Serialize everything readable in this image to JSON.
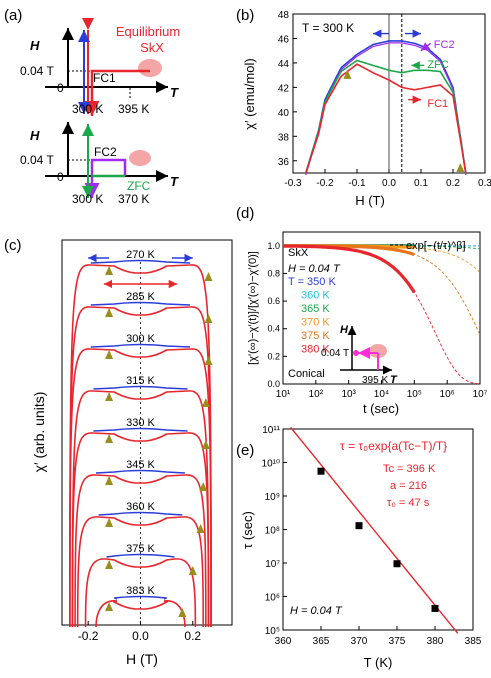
{
  "panel_labels": {
    "a": "(a)",
    "b": "(b)",
    "c": "(c)",
    "d": "(d)",
    "e": "(e)"
  },
  "colors": {
    "red": "#e8262d",
    "blue": "#2a3ddb",
    "green": "#1aa84b",
    "purple": "#a12bf0",
    "pink": "#f4a6a6",
    "magenta": "#ff2dd6",
    "olive": "#9a8d1a",
    "cyan": "#1ec8e8",
    "orange": "#f39a1c",
    "dkorange": "#e8761a",
    "black": "#000000"
  },
  "panel_a": {
    "h_label": "H",
    "t_label": "T",
    "field": "0.04 T",
    "zero": "0",
    "top": {
      "path": "FC1",
      "equilibrium": "Equilibrium",
      "skx": "SkX",
      "t1": "300 K",
      "t2": "395 K"
    },
    "bottom": {
      "path1": "FC2",
      "path2": "ZFC",
      "t1": "300 K",
      "t2": "370 K"
    }
  },
  "chart_data": [
    {
      "type": "line",
      "panel": "b",
      "title": "T = 300 K",
      "xlabel": "H (T)",
      "ylabel": "χ′ (emu/mol)",
      "xlim": [
        -0.3,
        0.3
      ],
      "ylim": [
        35,
        48
      ],
      "xticks": [
        "-0.3",
        "-0.2",
        "-0.1",
        "0.0",
        "0.1",
        "0.2",
        "0.3"
      ],
      "yticks": [
        "36",
        "38",
        "40",
        "42",
        "44",
        "46",
        "48"
      ],
      "vlines": [
        0.0,
        0.04
      ],
      "series": [
        {
          "name": "FC2",
          "x": [
            -0.26,
            -0.22,
            -0.2,
            -0.15,
            -0.1,
            -0.05,
            0.0,
            0.04,
            0.08,
            0.12,
            0.16,
            0.2,
            0.22,
            0.24
          ],
          "y": [
            35,
            38.5,
            41,
            43.6,
            44.7,
            45.5,
            45.8,
            45.8,
            45.6,
            45.2,
            44.3,
            42,
            38.5,
            35
          ]
        },
        {
          "name": "ZFC",
          "x": [
            -0.26,
            -0.22,
            -0.2,
            -0.15,
            -0.1,
            -0.05,
            0.0,
            0.04,
            0.08,
            0.12,
            0.16,
            0.2,
            0.22,
            0.24
          ],
          "y": [
            35,
            38.4,
            40.8,
            43.3,
            44.2,
            43.8,
            43.4,
            43.2,
            43.4,
            43.4,
            43.3,
            41.6,
            38.4,
            35
          ]
        },
        {
          "name": "FC1",
          "x": [
            -0.26,
            -0.22,
            -0.2,
            -0.15,
            -0.1,
            -0.05,
            0.0,
            0.04,
            0.08,
            0.12,
            0.16,
            0.2,
            0.22,
            0.24
          ],
          "y": [
            35,
            38.2,
            40.6,
            42.9,
            43.9,
            43.2,
            42.6,
            42.0,
            41.8,
            42.0,
            42.2,
            41.3,
            38.2,
            35
          ]
        }
      ]
    },
    {
      "type": "line",
      "panel": "c",
      "xlabel": "H (T)",
      "ylabel": "χ′ (arb. units)",
      "xlim": [
        -0.3,
        0.35
      ],
      "xticks": [
        "-0.2",
        "0.0",
        "0.2"
      ],
      "temperatures": [
        "270 K",
        "285 K",
        "300 K",
        "315 K",
        "330 K",
        "345 K",
        "360 K",
        "375 K",
        "383 K"
      ],
      "half_width": [
        0.22,
        0.22,
        0.22,
        0.21,
        0.21,
        0.2,
        0.19,
        0.16,
        0.12
      ]
    },
    {
      "type": "line",
      "panel": "d",
      "xlabel": "t (sec)",
      "ylabel": "[χ′(∞)−χ′(t)]/[χ′(∞)−χ′(0)]",
      "xscale": "log",
      "xlim": [
        10,
        10000000
      ],
      "ylim": [
        0,
        1.1
      ],
      "xticks": [
        "10¹",
        "10²",
        "10³",
        "10⁴",
        "10⁵",
        "10⁶",
        "10⁷"
      ],
      "yticks": [
        "0.0",
        "0.2",
        "0.4",
        "0.6",
        "0.8",
        "1.0"
      ],
      "top_label": "SkX",
      "bottom_label": "Conical",
      "legend_fit": "exp[−(t/τ)^β]",
      "field_label": "H = 0.04 T",
      "inset": {
        "h": "H",
        "t": "T",
        "field": "0.04 T",
        "temp": "395 K"
      },
      "series": [
        {
          "name": "T = 350 K",
          "tau": 1000000000000000.0,
          "beta": 0.6
        },
        {
          "name": "360 K",
          "tau": 1000000000000.0,
          "beta": 0.6
        },
        {
          "name": "365 K",
          "tau": 5500000000.0,
          "beta": 0.6
        },
        {
          "name": "370 K",
          "tau": 130000000.0,
          "beta": 0.6
        },
        {
          "name": "375 K",
          "tau": 9500000.0,
          "beta": 0.6
        },
        {
          "name": "380 K",
          "tau": 440000.0,
          "beta": 0.6
        }
      ]
    },
    {
      "type": "scatter",
      "panel": "e",
      "xlabel": "T (K)",
      "ylabel": "τ (sec)",
      "xlim": [
        360,
        385
      ],
      "ylim_log10": [
        5,
        11
      ],
      "xticks": [
        "360",
        "365",
        "370",
        "375",
        "380",
        "385"
      ],
      "yticks": [
        "10⁵",
        "10⁶",
        "10⁷",
        "10⁸",
        "10⁹",
        "10¹⁰",
        "10¹¹"
      ],
      "points": [
        {
          "x": 365,
          "y": 5500000000
        },
        {
          "x": 370,
          "y": 130000000
        },
        {
          "x": 375,
          "y": 9500000
        },
        {
          "x": 380,
          "y": 440000
        }
      ],
      "fit_line": {
        "x": [
          361,
          383
        ],
        "y_log10": [
          11.05,
          4.9
        ]
      },
      "annotation": {
        "formula": "τ = τ₀exp{a(Tc−T)/T}",
        "tc": "Tc = 396 K",
        "a": "a = 216",
        "tau0": "τ₀ = 47 s"
      },
      "field_label": "H = 0.04 T"
    }
  ]
}
